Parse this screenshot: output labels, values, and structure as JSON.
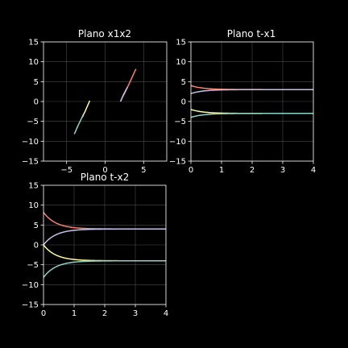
{
  "figure": {
    "background": "#000000",
    "grid": true
  },
  "chart_data": [
    {
      "id": "x1x2",
      "type": "line",
      "title": "Plano x1x2",
      "xlabel": "",
      "ylabel": "",
      "xlim": [
        -8,
        8
      ],
      "ylim": [
        -15,
        15
      ],
      "xticks": [
        -5,
        0,
        5
      ],
      "yticks": [
        -15,
        -10,
        -5,
        0,
        5,
        10,
        15
      ],
      "series": [
        {
          "color": "#fa8072",
          "points": [
            [
              4,
              8.2
            ],
            [
              3.0,
              4.0
            ],
            [
              2.5,
              2.0
            ],
            [
              2.2,
              0.9
            ],
            [
              2.0,
              0
            ]
          ]
        },
        {
          "color": "#c9c1e8",
          "points": [
            [
              2,
              0
            ],
            [
              2.4,
              1.8
            ],
            [
              2.9,
              3.6
            ]
          ]
        },
        {
          "color": "#ffff99",
          "points": [
            [
              -2.0,
              0.2
            ],
            [
              -2.6,
              -2.5
            ],
            [
              -3.0,
              -4.0
            ]
          ]
        },
        {
          "color": "#8fd3c7",
          "points": [
            [
              -4,
              -8.2
            ],
            [
              -3.5,
              -6.0
            ],
            [
              -3.0,
              -4.0
            ],
            [
              -2.8,
              -3.5
            ]
          ]
        }
      ]
    },
    {
      "id": "tx1",
      "type": "line",
      "title": "Plano t-x1",
      "xlabel": "",
      "ylabel": "",
      "xlim": [
        0,
        4
      ],
      "ylim": [
        -15,
        15
      ],
      "xticks": [
        0,
        1,
        2,
        3,
        4
      ],
      "yticks": [
        -15,
        -10,
        -5,
        0,
        5,
        10,
        15
      ],
      "series": [
        {
          "color": "#fa8072",
          "x0": 4,
          "xinf": 3,
          "rate": 2.5
        },
        {
          "color": "#c9c1e8",
          "x0": 2,
          "xinf": 3,
          "rate": 2.5
        },
        {
          "color": "#ffff99",
          "x0": -2,
          "xinf": -3,
          "rate": 2.5
        },
        {
          "color": "#8fd3c7",
          "x0": -4,
          "xinf": -3,
          "rate": 2.5
        }
      ]
    },
    {
      "id": "tx2",
      "type": "line",
      "title": "Plano t-x2",
      "xlabel": "",
      "ylabel": "",
      "xlim": [
        0,
        4
      ],
      "ylim": [
        -15,
        15
      ],
      "xticks": [
        0,
        1,
        2,
        3,
        4
      ],
      "yticks": [
        -15,
        -10,
        -5,
        0,
        5,
        10,
        15
      ],
      "series": [
        {
          "color": "#fa8072",
          "x0": 8.2,
          "xinf": 4,
          "rate": 2.5
        },
        {
          "color": "#c9c1e8",
          "x0": 0,
          "xinf": 4,
          "rate": 2.5
        },
        {
          "color": "#ffff99",
          "x0": 0,
          "xinf": -4,
          "rate": 2.5
        },
        {
          "color": "#8fd3c7",
          "x0": -8.2,
          "xinf": -4,
          "rate": 2.5
        }
      ]
    }
  ]
}
